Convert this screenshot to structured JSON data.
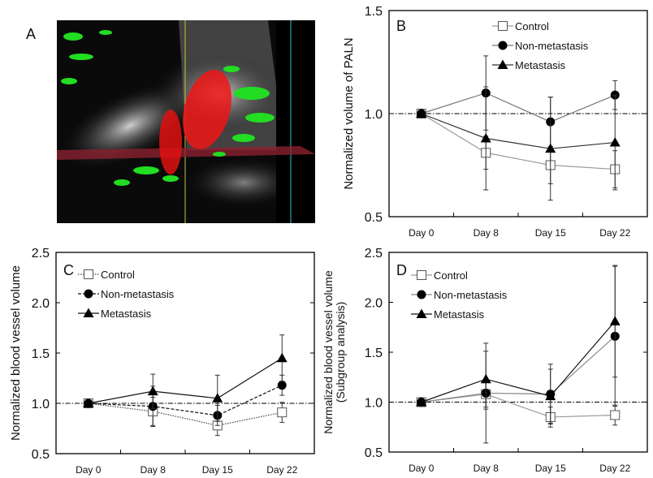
{
  "panel_a": {
    "label": "A"
  },
  "chart_data": [
    {
      "panel": "B",
      "type": "line",
      "ylabel": "Normalized volume of PALN",
      "categories": [
        "Day 0",
        "Day 8",
        "Day 15",
        "Day 22"
      ],
      "ylim": [
        0.5,
        1.5
      ],
      "yticks": [
        "0.5",
        "1.0",
        "1.5"
      ],
      "reference_line": 1.0,
      "legend_position": "top-right",
      "series": [
        {
          "name": "Control",
          "marker": "open-square",
          "color": "#9a9a9a",
          "dash": "solid",
          "values": [
            1.0,
            0.81,
            0.75,
            0.73
          ],
          "errors": [
            0,
            0.08,
            0.09,
            0.09
          ]
        },
        {
          "name": "Non-metastasis",
          "marker": "filled-circle",
          "color": "#777777",
          "dash": "solid",
          "values": [
            1.0,
            1.1,
            0.96,
            1.09
          ],
          "errors": [
            0,
            0.18,
            0.12,
            0.07
          ]
        },
        {
          "name": "Metastasis",
          "marker": "filled-triangle",
          "color": "#333333",
          "dash": "solid",
          "values": [
            1.0,
            0.88,
            0.83,
            0.86
          ],
          "errors": [
            0,
            0.25,
            0.25,
            0.23
          ]
        }
      ]
    },
    {
      "panel": "C",
      "type": "line",
      "ylabel": "Normalized blood vessel volume",
      "categories": [
        "Day 0",
        "Day 8",
        "Day 15",
        "Day 22"
      ],
      "ylim": [
        0.5,
        2.5
      ],
      "yticks": [
        "0.5",
        "1.0",
        "1.5",
        "2.0",
        "2.5"
      ],
      "reference_line": 1.0,
      "legend_position": "top-left",
      "series": [
        {
          "name": "Control",
          "marker": "open-square",
          "color": "#444444",
          "dash": "dotted",
          "values": [
            1.0,
            0.92,
            0.78,
            0.91
          ],
          "errors": [
            0,
            0.14,
            0.1,
            0.1
          ]
        },
        {
          "name": "Non-metastasis",
          "marker": "filled-circle",
          "color": "#111111",
          "dash": "dashed",
          "values": [
            1.0,
            0.97,
            0.88,
            1.18
          ],
          "errors": [
            0,
            0.2,
            0.1,
            0.1
          ]
        },
        {
          "name": "Metastasis",
          "marker": "filled-triangle",
          "color": "#111111",
          "dash": "solid",
          "values": [
            1.0,
            1.12,
            1.05,
            1.45
          ],
          "errors": [
            0,
            0.17,
            0.23,
            0.23
          ]
        }
      ]
    },
    {
      "panel": "D",
      "type": "line",
      "ylabel": "Normalized blood vessel volume",
      "ylabel2": "(Subgroup analysis)",
      "categories": [
        "Day 0",
        "Day 8",
        "Day 15",
        "Day 22"
      ],
      "ylim": [
        0.5,
        2.5
      ],
      "yticks": [
        "0.5",
        "1.0",
        "1.5",
        "2.0",
        "2.5"
      ],
      "reference_line": 1.0,
      "legend_position": "top-left",
      "series": [
        {
          "name": "Control",
          "marker": "open-square",
          "color": "#9a9a9a",
          "dash": "solid",
          "values": [
            1.0,
            1.08,
            0.85,
            0.87
          ],
          "errors": [
            0,
            0.15,
            0.1,
            0.1
          ]
        },
        {
          "name": "Non-metastasis",
          "marker": "filled-circle",
          "color": "#888888",
          "dash": "solid",
          "values": [
            1.0,
            1.09,
            1.08,
            1.66
          ],
          "errors": [
            0,
            0.5,
            0.3,
            0.7
          ]
        },
        {
          "name": "Metastasis",
          "marker": "filled-triangle",
          "color": "#111111",
          "dash": "solid",
          "values": [
            1.0,
            1.23,
            1.06,
            1.81
          ],
          "errors": [
            0,
            0.28,
            0.27,
            0.56
          ]
        }
      ]
    }
  ]
}
